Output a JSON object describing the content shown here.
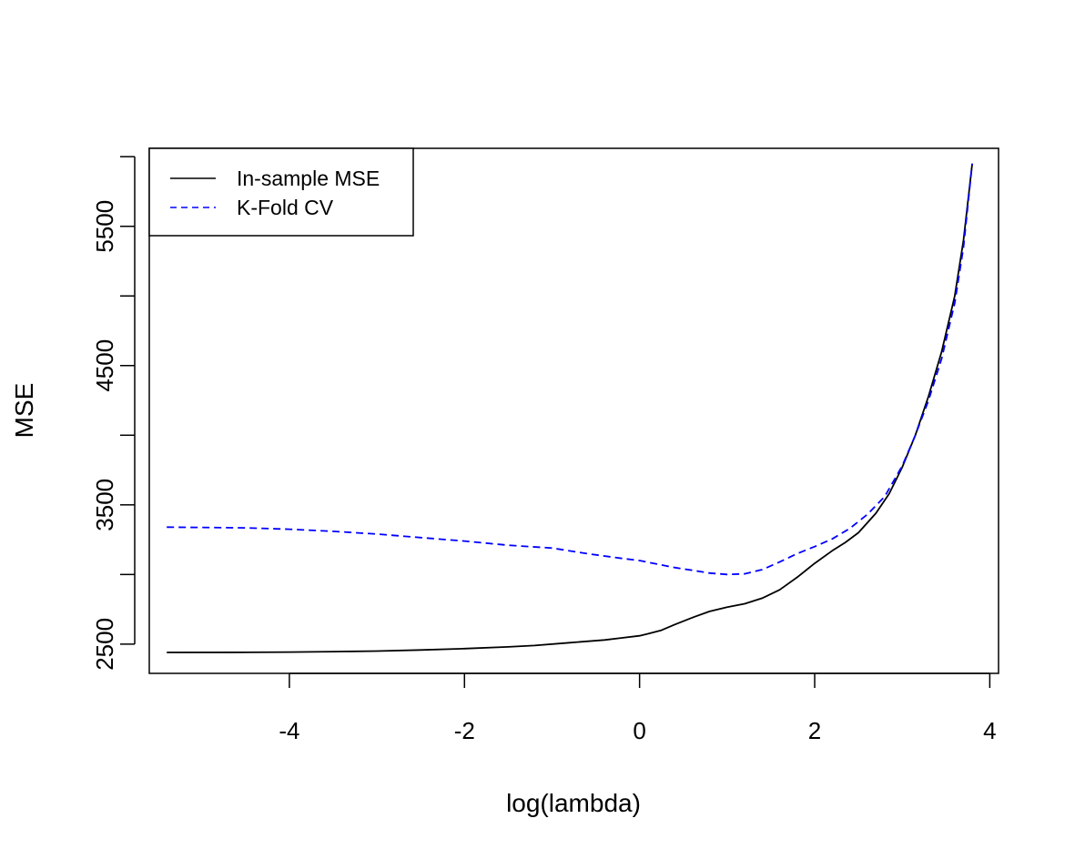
{
  "chart_data": {
    "type": "line",
    "title": "",
    "xlabel": "log(lambda)",
    "ylabel": "MSE",
    "xlim": [
      -5.6,
      4.1
    ],
    "ylim": [
      2290,
      6060
    ],
    "x_ticks": [
      -4,
      -2,
      0,
      2,
      4
    ],
    "x_tick_labels": [
      "-4",
      "-2",
      "0",
      "2",
      "4"
    ],
    "y_ticks": [
      2500,
      3000,
      3500,
      4000,
      4500,
      5000,
      5500,
      6000
    ],
    "y_tick_labels": [
      "2500",
      "",
      "3500",
      "",
      "4500",
      "",
      "5500",
      ""
    ],
    "grid": false,
    "legend": {
      "position": "top-left"
    },
    "series": [
      {
        "name": "In-sample MSE",
        "color": "#000000",
        "dash": "solid",
        "x": [
          -5.4,
          -4.5,
          -4.0,
          -3.5,
          -3.0,
          -2.5,
          -2.0,
          -1.5,
          -1.2,
          -0.8,
          -0.4,
          -0.2,
          0.0,
          0.1,
          0.25,
          0.4,
          0.6,
          0.8,
          1.0,
          1.2,
          1.4,
          1.6,
          1.8,
          2.0,
          2.2,
          2.35,
          2.5,
          2.7,
          2.85,
          3.0,
          3.15,
          3.3,
          3.45,
          3.6,
          3.7,
          3.8
        ],
        "values": [
          2440,
          2441,
          2443,
          2446,
          2450,
          2458,
          2468,
          2480,
          2490,
          2510,
          2530,
          2545,
          2560,
          2575,
          2600,
          2640,
          2690,
          2735,
          2765,
          2790,
          2830,
          2890,
          2980,
          3080,
          3170,
          3230,
          3300,
          3440,
          3580,
          3770,
          4000,
          4280,
          4600,
          5000,
          5400,
          5950
        ]
      },
      {
        "name": "K-Fold CV",
        "color": "#0000ff",
        "dash": "dashed",
        "x": [
          -5.4,
          -4.5,
          -4.0,
          -3.5,
          -3.0,
          -2.5,
          -2.0,
          -1.5,
          -1.0,
          -0.6,
          -0.2,
          0.0,
          0.2,
          0.4,
          0.6,
          0.8,
          1.0,
          1.2,
          1.4,
          1.6,
          1.8,
          2.0,
          2.2,
          2.4,
          2.6,
          2.8,
          3.0,
          3.15,
          3.3,
          3.45,
          3.6,
          3.7,
          3.8
        ],
        "values": [
          3340,
          3335,
          3325,
          3310,
          3290,
          3265,
          3240,
          3210,
          3190,
          3150,
          3115,
          3100,
          3075,
          3050,
          3030,
          3010,
          3000,
          3005,
          3035,
          3090,
          3150,
          3200,
          3255,
          3330,
          3430,
          3560,
          3780,
          4000,
          4250,
          4550,
          4950,
          5350,
          5950
        ]
      }
    ]
  }
}
